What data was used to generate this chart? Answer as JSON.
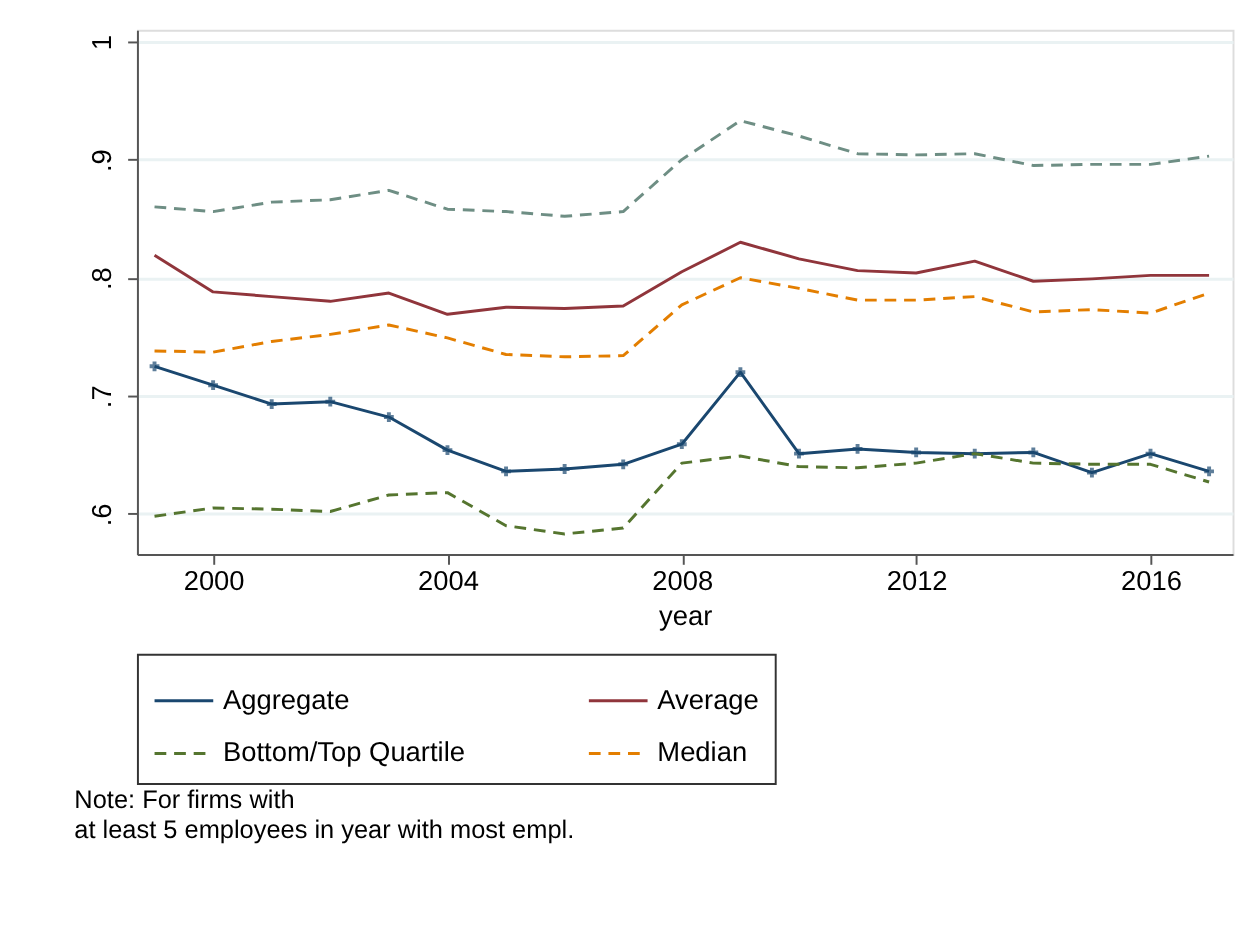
{
  "chart_data": {
    "type": "line",
    "xlabel": "year",
    "x": [
      1999,
      2000,
      2001,
      2002,
      2003,
      2004,
      2005,
      2006,
      2007,
      2008,
      2009,
      2010,
      2011,
      2012,
      2013,
      2014,
      2015,
      2016,
      2017
    ],
    "series": [
      {
        "name": "Aggregate",
        "color": "#1a476f",
        "line_style": "solid",
        "marker": "cross",
        "values": [
          0.725,
          0.709,
          0.693,
          0.695,
          0.682,
          0.654,
          0.636,
          0.638,
          0.642,
          0.659,
          0.72,
          0.651,
          0.655,
          0.652,
          0.651,
          0.652,
          0.635,
          0.651,
          0.636
        ]
      },
      {
        "name": "Average",
        "color": "#90353b",
        "line_style": "solid",
        "values": [
          0.819,
          0.788,
          0.784,
          0.78,
          0.787,
          0.769,
          0.775,
          0.774,
          0.776,
          0.805,
          0.83,
          0.816,
          0.806,
          0.804,
          0.814,
          0.797,
          0.799,
          0.802,
          0.802
        ]
      },
      {
        "name": "Bottom/Top Quartile",
        "color": "#55752f",
        "line_style": "dashed",
        "values": [
          0.598,
          0.605,
          0.604,
          0.602,
          0.616,
          0.618,
          0.59,
          0.583,
          0.588,
          0.643,
          0.649,
          0.64,
          0.639,
          0.643,
          0.651,
          0.643,
          0.642,
          0.642,
          0.627
        ]
      },
      {
        "name": "Median",
        "color": "#e37e00",
        "line_style": "dashed",
        "values": [
          0.738,
          0.737,
          0.746,
          0.752,
          0.76,
          0.749,
          0.735,
          0.733,
          0.734,
          0.777,
          0.8,
          0.791,
          0.781,
          0.781,
          0.784,
          0.771,
          0.773,
          0.77,
          0.787
        ]
      },
      {
        "color": "#6e8e84",
        "line_style": "dashed",
        "values": [
          0.86,
          0.856,
          0.864,
          0.866,
          0.874,
          0.858,
          0.856,
          0.852,
          0.856,
          0.9,
          0.933,
          0.92,
          0.905,
          0.904,
          0.905,
          0.895,
          0.896,
          0.896,
          0.903
        ]
      }
    ],
    "xlim": [
      1998.7,
      2017.4
    ],
    "xticks": [
      2000,
      2004,
      2008,
      2012,
      2016
    ],
    "ylim": [
      0.566,
      1.01
    ],
    "yticks": [
      {
        "value": 0.6,
        "label": ".6"
      },
      {
        "value": 0.7,
        "label": ".7"
      },
      {
        "value": 0.8,
        "label": ".8"
      },
      {
        "value": 0.9,
        "label": ".9"
      },
      {
        "value": 1,
        "label": "1"
      }
    ],
    "grid": "y",
    "legend": "bottom",
    "annotations": [
      "Note: For firms with\nat least 5 employees in year with most empl."
    ]
  }
}
